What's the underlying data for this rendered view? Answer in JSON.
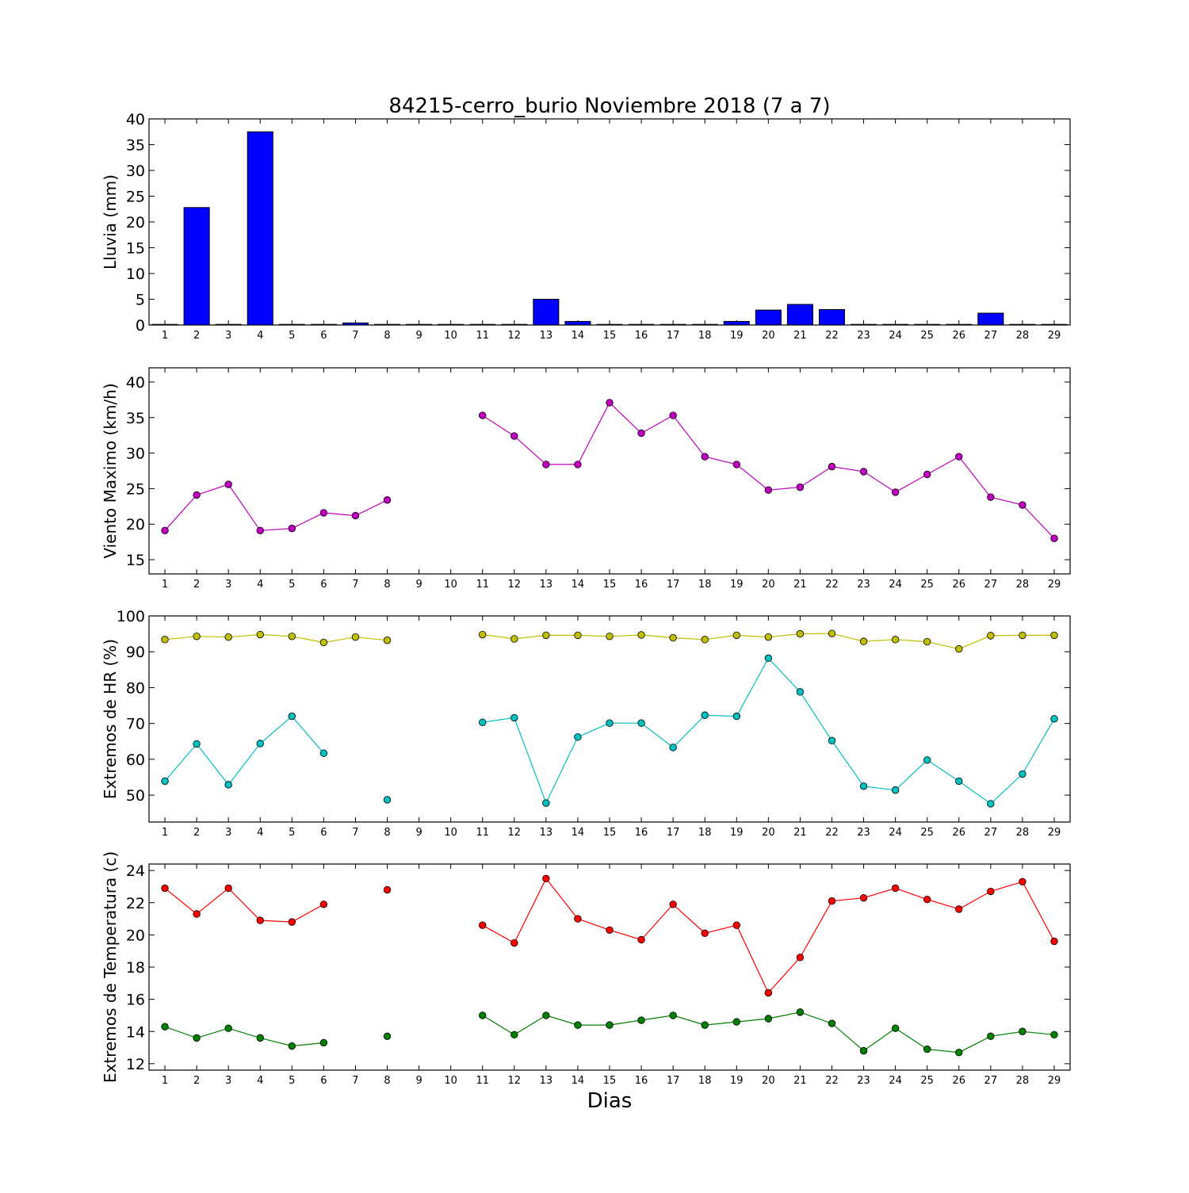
{
  "figure": {
    "title": "84215-cerro_burio Noviembre 2018  (7 a 7)",
    "xlabel": "Dias"
  },
  "chart_data": [
    {
      "type": "bar",
      "ylabel": "Lluvia (mm)",
      "ylim": [
        0,
        40
      ],
      "yticks": [
        0,
        5,
        10,
        15,
        20,
        25,
        30,
        35,
        40
      ],
      "categories": [
        "1",
        "2",
        "3",
        "4",
        "5",
        "6",
        "7",
        "8",
        "9",
        "10",
        "11",
        "12",
        "13",
        "14",
        "15",
        "16",
        "17",
        "18",
        "19",
        "20",
        "21",
        "22",
        "23",
        "24",
        "25",
        "26",
        "27",
        "28",
        "29"
      ],
      "series": [
        {
          "color": "#0000ff",
          "values": [
            0,
            22.8,
            0.1,
            37.5,
            0.1,
            0,
            0.4,
            0,
            0,
            0,
            0.1,
            0,
            5.0,
            0.7,
            0,
            0,
            0.1,
            0,
            0.7,
            2.9,
            4.0,
            3.0,
            0.1,
            0,
            0,
            0,
            2.3,
            0,
            0.1
          ]
        }
      ]
    },
    {
      "type": "line",
      "ylabel": "Viento Maximo (km/h)",
      "ylim": [
        13,
        42
      ],
      "yticks": [
        15,
        20,
        25,
        30,
        35,
        40
      ],
      "categories": [
        "1",
        "2",
        "3",
        "4",
        "5",
        "6",
        "7",
        "8",
        "9",
        "10",
        "11",
        "12",
        "13",
        "14",
        "15",
        "16",
        "17",
        "18",
        "19",
        "20",
        "21",
        "22",
        "23",
        "24",
        "25",
        "26",
        "27",
        "28",
        "29"
      ],
      "series": [
        {
          "color": "#bf00bf",
          "values": [
            19.1,
            24.1,
            25.6,
            19.1,
            19.4,
            21.6,
            21.2,
            23.4,
            null,
            null,
            35.3,
            32.4,
            28.4,
            28.4,
            37.1,
            32.8,
            35.3,
            29.5,
            28.4,
            24.8,
            25.2,
            28.1,
            27.4,
            24.5,
            27.0,
            29.5,
            23.8,
            22.7,
            18.0
          ]
        }
      ]
    },
    {
      "type": "line",
      "ylabel": "Extremos de HR (%)",
      "ylim": [
        42.5,
        100
      ],
      "yticks": [
        50,
        60,
        70,
        80,
        90,
        100
      ],
      "categories": [
        "1",
        "2",
        "3",
        "4",
        "5",
        "6",
        "7",
        "8",
        "9",
        "10",
        "11",
        "12",
        "13",
        "14",
        "15",
        "16",
        "17",
        "18",
        "19",
        "20",
        "21",
        "22",
        "23",
        "24",
        "25",
        "26",
        "27",
        "28",
        "29"
      ],
      "series": [
        {
          "color": "#bfbf00",
          "values": [
            93.4,
            94.3,
            94.1,
            94.8,
            94.3,
            92.6,
            94.1,
            93.2,
            null,
            null,
            94.8,
            93.6,
            94.6,
            94.6,
            94.3,
            94.7,
            93.9,
            93.4,
            94.6,
            94.1,
            95.0,
            95.1,
            92.9,
            93.4,
            92.8,
            90.8,
            94.5,
            94.6,
            94.6
          ]
        },
        {
          "color": "#00bfbf",
          "values": [
            53.9,
            64.3,
            52.9,
            64.4,
            72.0,
            61.7,
            null,
            48.7,
            null,
            null,
            70.3,
            71.6,
            47.8,
            66.2,
            70.1,
            70.1,
            63.3,
            72.3,
            72.0,
            88.2,
            78.8,
            65.2,
            52.5,
            51.4,
            59.8,
            53.9,
            47.6,
            55.9,
            71.3
          ]
        }
      ]
    },
    {
      "type": "line",
      "ylabel": "Extremos de Temperatura (c)",
      "ylim": [
        11.6,
        24.4
      ],
      "yticks": [
        12,
        14,
        16,
        18,
        20,
        22,
        24
      ],
      "categories": [
        "1",
        "2",
        "3",
        "4",
        "5",
        "6",
        "7",
        "8",
        "9",
        "10",
        "11",
        "12",
        "13",
        "14",
        "15",
        "16",
        "17",
        "18",
        "19",
        "20",
        "21",
        "22",
        "23",
        "24",
        "25",
        "26",
        "27",
        "28",
        "29"
      ],
      "series": [
        {
          "color": "#ff0000",
          "values": [
            22.9,
            21.3,
            22.9,
            20.9,
            20.8,
            21.9,
            null,
            22.8,
            null,
            null,
            20.6,
            19.5,
            23.5,
            21.0,
            20.3,
            19.7,
            21.9,
            20.1,
            20.6,
            16.4,
            18.6,
            22.1,
            22.3,
            22.9,
            22.2,
            21.6,
            22.7,
            23.3,
            19.6
          ]
        },
        {
          "color": "#008000",
          "values": [
            14.3,
            13.6,
            14.2,
            13.6,
            13.1,
            13.3,
            null,
            13.7,
            null,
            null,
            15.0,
            13.8,
            15.0,
            14.4,
            14.4,
            14.7,
            15.0,
            14.4,
            14.6,
            14.8,
            15.2,
            14.5,
            12.8,
            14.2,
            12.9,
            12.7,
            13.7,
            14.0,
            13.8
          ]
        }
      ]
    }
  ]
}
